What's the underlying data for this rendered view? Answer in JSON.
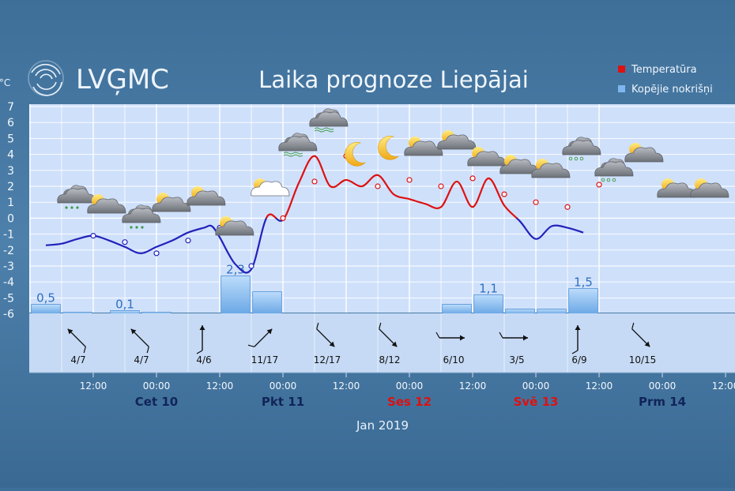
{
  "header": {
    "logo_text": "LVĢMC",
    "title": "Laika prognoze Liepājai",
    "unit": "°C"
  },
  "legend": [
    {
      "label": "Temperatūra",
      "color": "#dd1111"
    },
    {
      "label": "Kopējie nokrišņi",
      "color": "#7fb6ee"
    }
  ],
  "x_axis": {
    "time_labels": [
      "12:00",
      "00:00",
      "12:00",
      "00:00",
      "12:00",
      "00:00",
      "12:00",
      "00:00",
      "12:00",
      "00:00",
      "12:00"
    ],
    "day_labels": [
      {
        "text": "Cet 10",
        "color": "#11245a"
      },
      {
        "text": "Pkt 11",
        "color": "#11245a"
      },
      {
        "text": "Ses 12",
        "color": "#dd1111"
      },
      {
        "text": "Svē 13",
        "color": "#dd1111"
      },
      {
        "text": "Prm 14",
        "color": "#11245a"
      }
    ],
    "month_label": "Jan 2019"
  },
  "wind": [
    {
      "label": "4/7",
      "icon": "wind-arrow-icon"
    },
    {
      "label": "4/7",
      "icon": "wind-arrow-icon"
    },
    {
      "label": "4/6",
      "icon": "wind-arrow-icon"
    },
    {
      "label": "11/17",
      "icon": "wind-arrow-icon"
    },
    {
      "label": "12/17",
      "icon": "wind-arrow-icon"
    },
    {
      "label": "8/12",
      "icon": "wind-arrow-icon"
    },
    {
      "label": "6/10",
      "icon": "wind-arrow-icon"
    },
    {
      "label": "3/5",
      "icon": "wind-arrow-icon"
    },
    {
      "label": "6/9",
      "icon": "wind-arrow-icon"
    },
    {
      "label": "10/15",
      "icon": "wind-arrow-icon"
    }
  ],
  "weather_icons": [
    "cloud-rain-icon",
    "sun-cloud-icon",
    "cloud-rain-icon",
    "sun-cloud-icon",
    "sun-cloud-icon",
    "sun-cloud-icon",
    "cloud-icon",
    "cloud-fog-icon",
    "cloud-fog-icon",
    "moon-icon",
    "moon-icon",
    "sun-cloud-icon",
    "sun-cloud-icon",
    "sun-cloud-icon",
    "sun-cloud-icon",
    "sun-cloud-icon",
    "cloud-snow-icon",
    "cloud-snow-icon",
    "sun-cloud-icon",
    "sun-cloud-icon",
    "sun-cloud-icon"
  ],
  "chart_data": {
    "type": "line",
    "title": "Laika prognoze Liepājai",
    "ylabel": "°C",
    "ylim": [
      -6,
      7
    ],
    "yticks": [
      7,
      6,
      5,
      4,
      3,
      2,
      1,
      0,
      -1,
      -2,
      -3,
      -4,
      -5,
      -6
    ],
    "grid": true,
    "legend_position": "top-right",
    "x_unit": "hours from 10 Jan 2019 00:00",
    "series": [
      {
        "name": "Temperatūra",
        "kind": "line",
        "cold_color": "#2222bb",
        "warm_color": "#dd1111",
        "x": [
          3,
          6,
          9,
          12,
          15,
          18,
          21,
          24,
          27,
          30,
          33,
          34.5,
          36,
          39,
          42,
          45,
          48,
          51,
          54,
          57,
          60,
          63,
          66,
          69,
          72,
          75,
          78,
          81,
          84,
          87,
          90,
          93,
          96,
          99,
          102,
          105
        ],
        "values": [
          -1.7,
          -1.6,
          -1.3,
          -1.1,
          -1.4,
          -1.8,
          -2.2,
          -1.8,
          -1.4,
          -0.9,
          -0.6,
          -0.5,
          -1.2,
          -2.9,
          -3.2,
          0.1,
          -0.1,
          2.2,
          3.9,
          2.0,
          2.4,
          2.0,
          2.7,
          1.5,
          1.2,
          0.9,
          0.7,
          2.3,
          0.7,
          2.5,
          0.8,
          -0.2,
          -1.3,
          -0.5,
          -0.6,
          -0.9
        ],
        "marker_x": [
          12,
          18,
          24,
          30,
          36,
          42,
          48,
          54,
          60,
          66,
          72,
          78,
          84,
          90,
          96,
          102,
          108
        ],
        "marker_values": [
          -1.1,
          -1.5,
          -2.2,
          -1.4,
          -0.6,
          -3.0,
          0.0,
          2.3,
          3.9,
          2.0,
          2.4,
          2.0,
          2.5,
          1.5,
          1.0,
          0.7,
          2.1
        ]
      },
      {
        "name": "Kopējie nokrišņi",
        "kind": "bar",
        "unit": "mm",
        "bar_x": [
          3,
          9,
          18,
          24,
          39,
          45,
          81,
          87,
          93,
          99,
          105
        ],
        "bar_width_hours": 5.5,
        "values": [
          0.5,
          0.0,
          0.1,
          0.0,
          2.3,
          1.3,
          0.5,
          1.1,
          0.2,
          0.2,
          1.5
        ],
        "value_labels": [
          "0,5",
          "",
          "0,1",
          "",
          "2,3",
          "",
          "",
          "1,1",
          "",
          "",
          "1,5"
        ]
      }
    ]
  }
}
